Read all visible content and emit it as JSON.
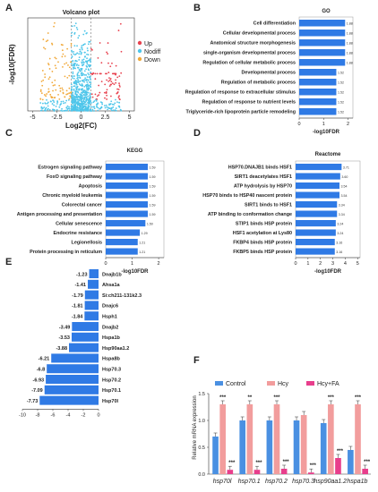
{
  "chart_data": [
    {
      "panel": "A",
      "type": "scatter",
      "title": "Volcano plot",
      "xlabel": "Log2(FC)",
      "ylabel": "-log10(FDR)",
      "xticks": [
        "-5",
        "-2.5",
        "0",
        "2.5",
        "5"
      ],
      "xlim": [
        -5.5,
        5.5
      ],
      "ylim": [
        0,
        10
      ],
      "legend": {
        "position": "right",
        "entries": [
          {
            "name": "Up",
            "color": "#e8424f"
          },
          {
            "name": "Nodiff",
            "color": "#4fc6ea"
          },
          {
            "name": "Down",
            "color": "#f1a93a"
          }
        ]
      }
    },
    {
      "panel": "B",
      "type": "bar",
      "orientation": "horizontal",
      "title": "GO",
      "xlabel": "-log10FDR",
      "xticks": [
        "0",
        "1",
        "2"
      ],
      "xlim": [
        0,
        2.2
      ],
      "color": "#2f7ae5",
      "categories": [
        "Cell differentiation",
        "Cellular developmental process",
        "Anatomical structure morphogenesis",
        "single-organism developmental process",
        "Regulation of cellular metabolic process",
        "Developmental process",
        "Regulation of metabolic process",
        "Regulation of response to extracellular stimulus",
        "Regulation of response to nutrient levels",
        "Triglyceride-rich lipoprotein particle remodeling"
      ],
      "values": [
        1.88,
        1.88,
        1.88,
        1.88,
        1.88,
        1.52,
        1.52,
        1.52,
        1.52,
        1.52
      ],
      "value_labels": [
        "1.88",
        "1.88",
        "1.88",
        "1.88",
        "1.88",
        "1.52",
        "1.52",
        "1.52",
        "1.52",
        "1.52"
      ]
    },
    {
      "panel": "C",
      "type": "bar",
      "orientation": "horizontal",
      "title": "KEGG",
      "xlabel": "-log10FDR",
      "xticks": [
        "0",
        "1",
        "2"
      ],
      "xlim": [
        0,
        2.2
      ],
      "color": "#2f7ae5",
      "categories": [
        "Estrogen signaling pathway",
        "FoxO signaling pathway",
        "Apoptosis",
        "Chronic myeloid leukemia",
        "Colorectal cancer",
        "Antigen processing and presentation",
        "Cellular senescence",
        "Endocrine resistance",
        "Legionellosis",
        "Protein processing in reticulum"
      ],
      "values": [
        1.59,
        1.59,
        1.59,
        1.59,
        1.59,
        1.59,
        1.5,
        1.29,
        1.21,
        1.21
      ],
      "value_labels": [
        "1.59",
        "1.59",
        "1.59",
        "1.59",
        "1.59",
        "1.59",
        "1.50",
        "1.29",
        "1.21",
        "1.21"
      ]
    },
    {
      "panel": "D",
      "type": "bar",
      "orientation": "horizontal",
      "title": "Reactome",
      "xlabel": "-log10FDR",
      "xticks": [
        "0",
        "1",
        "2",
        "3",
        "4",
        "5"
      ],
      "xlim": [
        0,
        5.2
      ],
      "color": "#2f7ae5",
      "categories": [
        "HSP70.DNAJB1 binds HSF1",
        "SIRT1 deacetylates HSF1",
        "ATP hydrolysis by HSP70",
        "HSP70 binds to HSP40 nascent protein",
        "SIRT1 binds to HSF1",
        "ATP binding to conformation change",
        "STIP1 binds HSP protein",
        "HSF1 acetylation at Lys80",
        "FKBP4 binds HSP protein",
        "FKBP5 binds HSP protein"
      ],
      "values": [
        3.71,
        3.6,
        3.54,
        3.54,
        3.34,
        3.34,
        3.24,
        3.24,
        3.16,
        3.16
      ],
      "value_labels": [
        "3.71",
        "3.60",
        "3.54",
        "3.54",
        "3.34",
        "3.34",
        "3.24",
        "3.24",
        "3.16",
        "3.16"
      ]
    },
    {
      "panel": "E",
      "type": "bar",
      "orientation": "horizontal",
      "color": "#2f7ae5",
      "xticks": [
        "-10",
        "-8",
        "-6",
        "-4",
        "-2",
        "0"
      ],
      "xlim": [
        -10,
        0
      ],
      "categories": [
        "Dnajb1b",
        "Ahsa1a",
        "Si:ch211-131k2.3",
        "Dnajc6",
        "Hsph1",
        "Dnajb2",
        "Hspa1b",
        "Hsp90aa1.2",
        "Hspa8b",
        "Hsp70.3",
        "Hsp70.2",
        "Hsp70.1",
        "Hsp70l"
      ],
      "values": [
        -1.23,
        -1.41,
        -1.79,
        -1.81,
        -1.84,
        -3.49,
        -3.53,
        -3.88,
        -6.21,
        -6.8,
        -6.93,
        -7.09,
        -7.73
      ],
      "value_labels": [
        "-1.23",
        "-1.41",
        "-1.79",
        "-1.81",
        "-1.84",
        "-3.49",
        "-3.53",
        "-3.88",
        "-6.21",
        "-6.8",
        "-6.93",
        "-7.09",
        "-7.73"
      ]
    },
    {
      "panel": "F",
      "type": "bar",
      "ylabel": "Relative mRNA expression",
      "ylim": [
        0,
        1.5
      ],
      "yticks": [
        "0.0",
        "0.5",
        "1.0",
        "1.5"
      ],
      "categories": [
        "hsp70l",
        "hsp70.1",
        "hsp70.2",
        "hsp70.3",
        "hsp90aa1.2",
        "hspa1b"
      ],
      "series": [
        {
          "name": "Control",
          "color": "#4a90e2",
          "values": [
            0.7,
            1.0,
            1.0,
            1.0,
            0.95,
            0.45
          ]
        },
        {
          "name": "Hcy",
          "color": "#f29d9d",
          "values": [
            1.3,
            1.3,
            1.3,
            1.1,
            1.3,
            1.3
          ]
        },
        {
          "name": "Hcy+FA",
          "color": "#e83e8c",
          "values": [
            0.08,
            0.08,
            0.1,
            0.03,
            0.3,
            0.1
          ]
        }
      ],
      "sig_hcy": [
        "***",
        "**",
        "***",
        "",
        "***",
        "***"
      ],
      "sig_fa": [
        "***",
        "***",
        "***",
        "***",
        "***",
        "***"
      ],
      "legend": {
        "position": "top",
        "entries": [
          "Control",
          "Hcy",
          "Hcy+FA"
        ]
      }
    }
  ],
  "panel_letters": [
    "A",
    "B",
    "C",
    "D",
    "E",
    "F"
  ]
}
